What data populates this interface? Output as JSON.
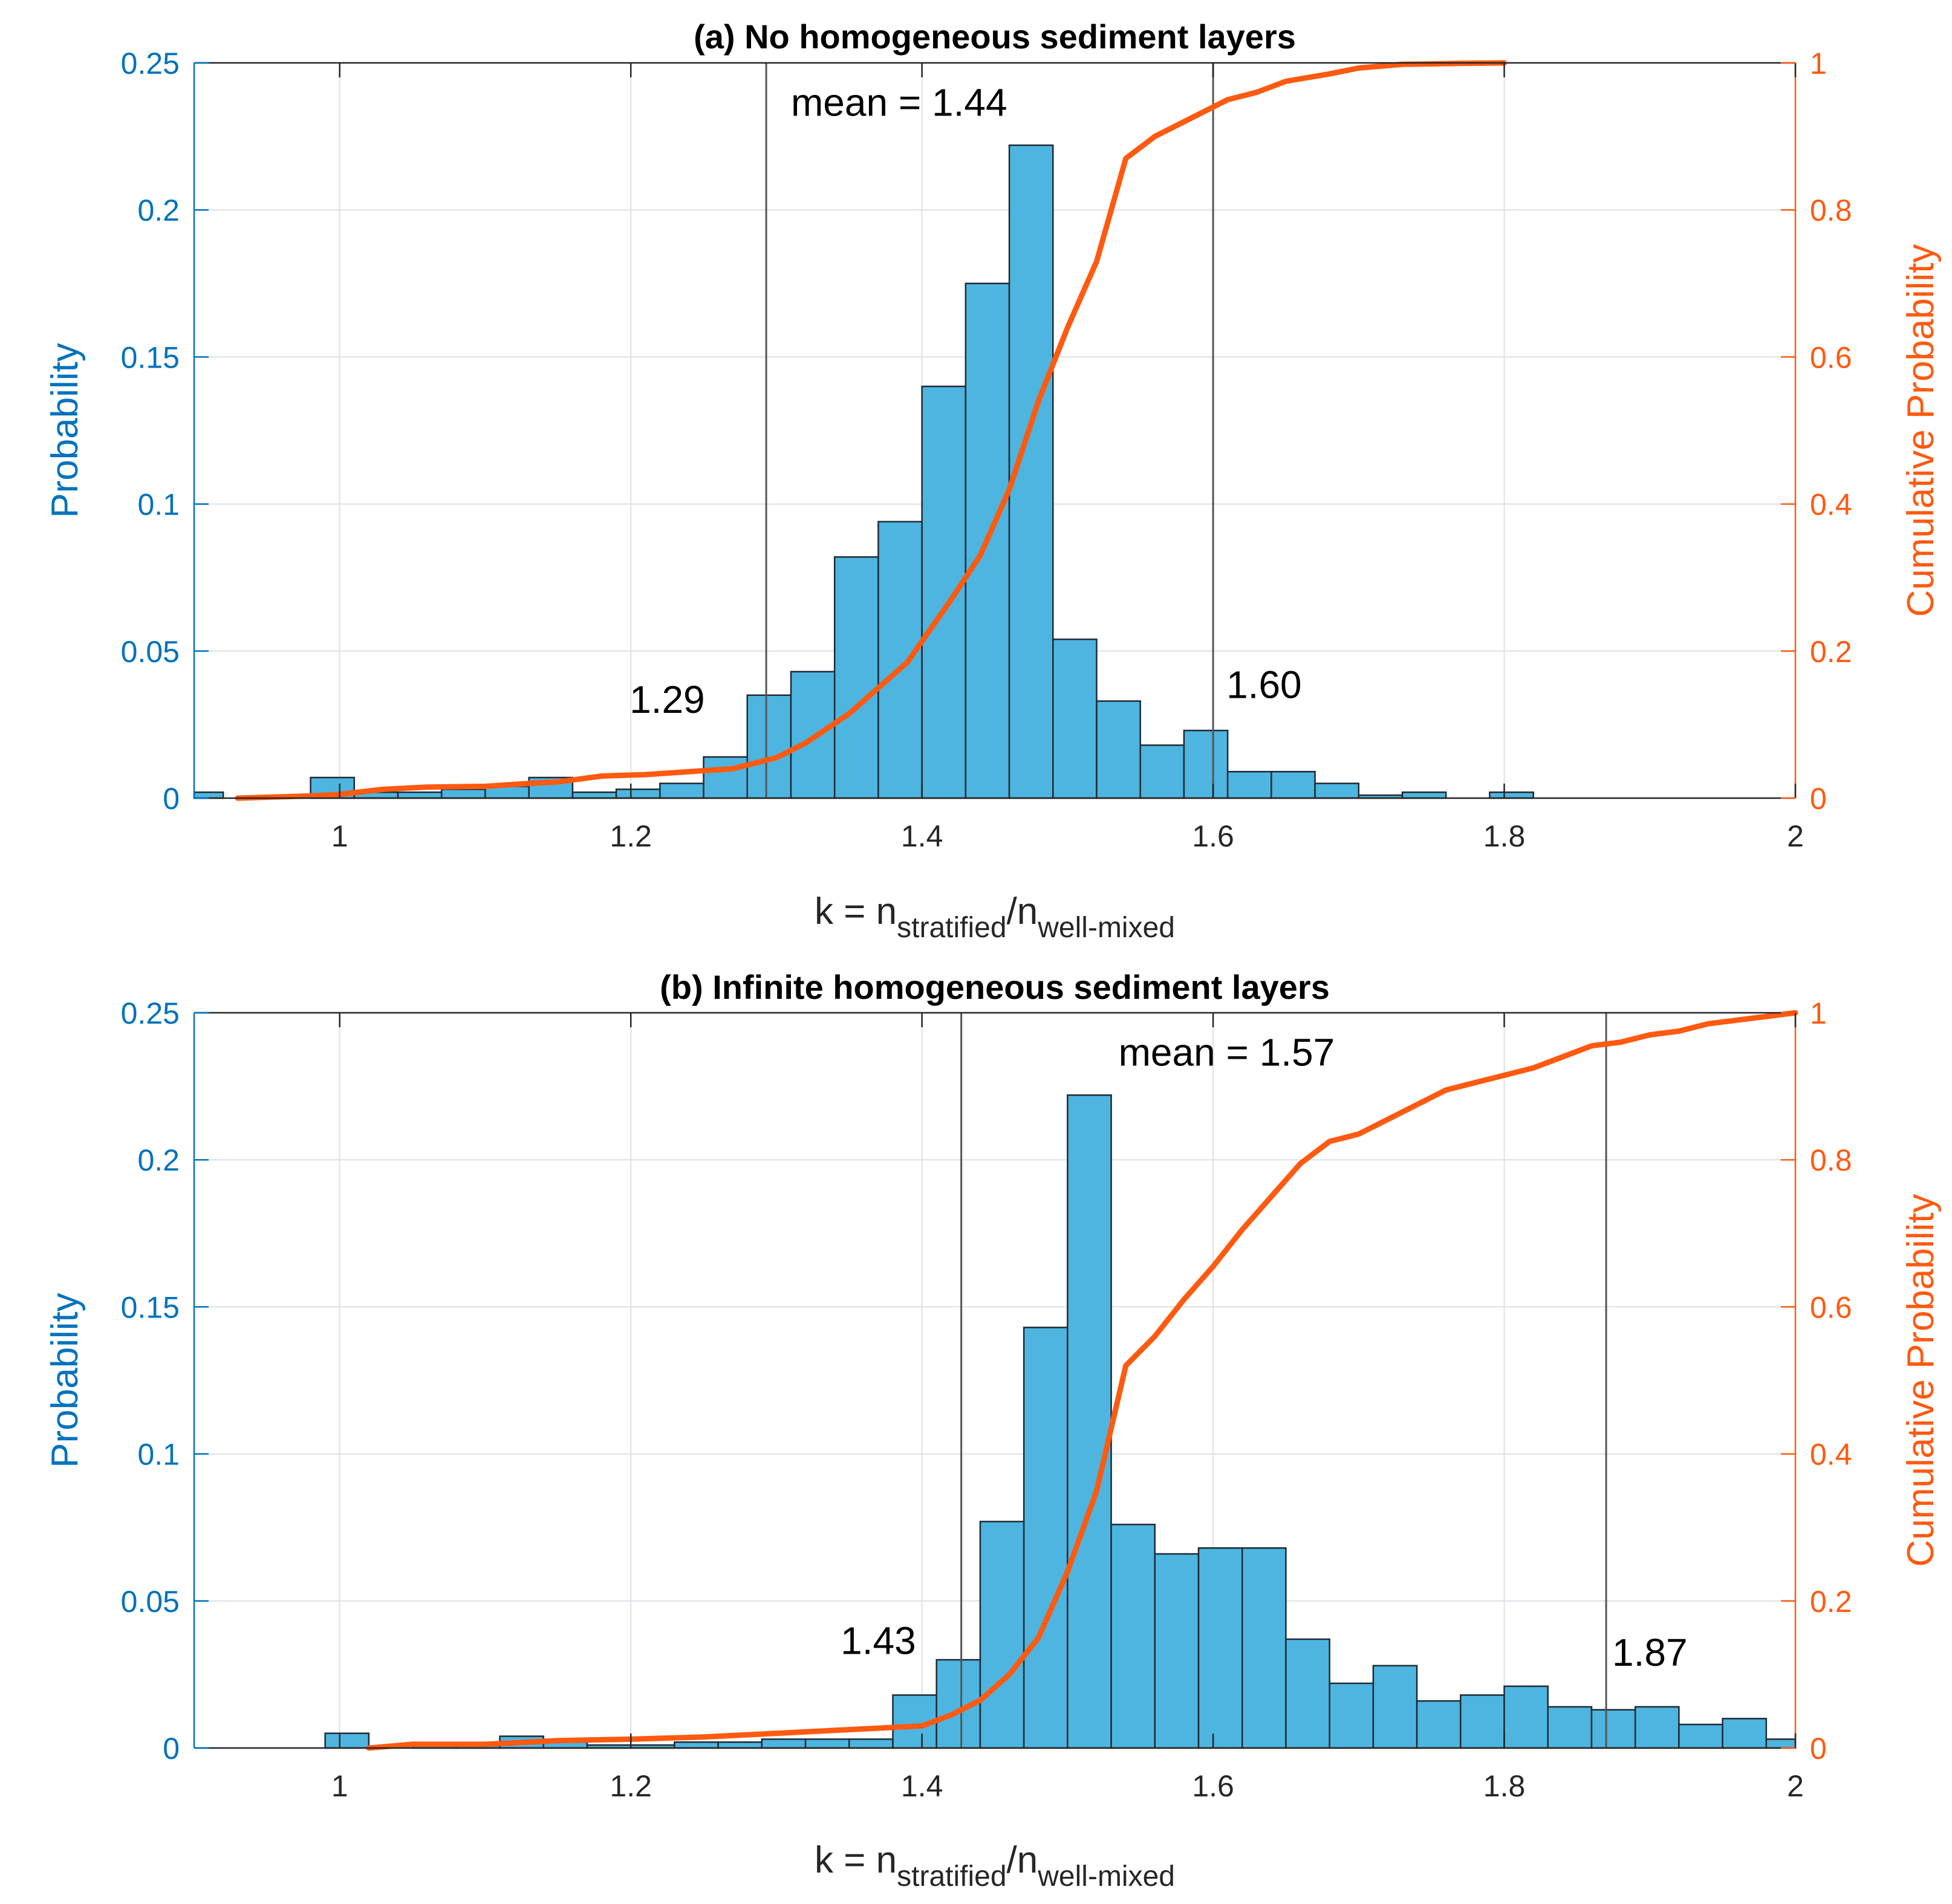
{
  "chart_data": [
    {
      "type": "bar",
      "title": "(a) No homogeneous sediment layers",
      "xlabel": {
        "main": "k = n",
        "sub1": "stratified",
        "slash": "/n",
        "sub2": "well-mixed"
      },
      "ylabel": "Probability",
      "y2label": "Cumulative Probability",
      "xlim": [
        0.9,
        2.0
      ],
      "ylim": [
        0,
        0.25
      ],
      "y2lim": [
        0,
        1
      ],
      "grid": true,
      "xticks": [
        "1",
        "1.2",
        "1.4",
        "1.6",
        "1.8",
        "2"
      ],
      "yticks": [
        "0",
        "0.05",
        "0.1",
        "0.15",
        "0.2",
        "0.25"
      ],
      "y2ticks": [
        "0",
        "0.2",
        "0.4",
        "0.6",
        "0.8",
        "1"
      ],
      "bin_width": 0.03,
      "histogram": [
        {
          "x0": 0.89,
          "value": 0.002
        },
        {
          "x0": 0.92,
          "value": 0.0
        },
        {
          "x0": 0.95,
          "value": 0.0
        },
        {
          "x0": 0.98,
          "value": 0.007
        },
        {
          "x0": 1.01,
          "value": 0.002
        },
        {
          "x0": 1.04,
          "value": 0.002
        },
        {
          "x0": 1.07,
          "value": 0.003
        },
        {
          "x0": 1.1,
          "value": 0.004
        },
        {
          "x0": 1.13,
          "value": 0.007
        },
        {
          "x0": 1.16,
          "value": 0.002
        },
        {
          "x0": 1.19,
          "value": 0.003
        },
        {
          "x0": 1.22,
          "value": 0.005
        },
        {
          "x0": 1.25,
          "value": 0.014
        },
        {
          "x0": 1.28,
          "value": 0.035
        },
        {
          "x0": 1.31,
          "value": 0.043
        },
        {
          "x0": 1.34,
          "value": 0.082
        },
        {
          "x0": 1.37,
          "value": 0.094
        },
        {
          "x0": 1.4,
          "value": 0.14
        },
        {
          "x0": 1.43,
          "value": 0.175
        },
        {
          "x0": 1.46,
          "value": 0.222
        },
        {
          "x0": 1.49,
          "value": 0.054
        },
        {
          "x0": 1.52,
          "value": 0.033
        },
        {
          "x0": 1.55,
          "value": 0.018
        },
        {
          "x0": 1.58,
          "value": 0.023
        },
        {
          "x0": 1.61,
          "value": 0.009
        },
        {
          "x0": 1.64,
          "value": 0.009
        },
        {
          "x0": 1.67,
          "value": 0.005
        },
        {
          "x0": 1.7,
          "value": 0.001
        },
        {
          "x0": 1.73,
          "value": 0.002
        },
        {
          "x0": 1.76,
          "value": 0.0
        },
        {
          "x0": 1.79,
          "value": 0.002
        }
      ],
      "cumulative": {
        "x": [
          0.93,
          0.98,
          1.0,
          1.03,
          1.06,
          1.1,
          1.13,
          1.15,
          1.18,
          1.21,
          1.24,
          1.27,
          1.3,
          1.32,
          1.35,
          1.37,
          1.39,
          1.42,
          1.44,
          1.46,
          1.48,
          1.5,
          1.52,
          1.54,
          1.56,
          1.58,
          1.61,
          1.63,
          1.65,
          1.68,
          1.7,
          1.73,
          1.76,
          1.8
        ],
        "y": [
          0.0,
          0.003,
          0.005,
          0.012,
          0.015,
          0.016,
          0.02,
          0.022,
          0.03,
          0.032,
          0.036,
          0.04,
          0.055,
          0.075,
          0.115,
          0.15,
          0.185,
          0.27,
          0.33,
          0.42,
          0.54,
          0.64,
          0.73,
          0.87,
          0.9,
          0.92,
          0.95,
          0.96,
          0.975,
          0.985,
          0.993,
          0.998,
          0.999,
          1.0
        ]
      },
      "vlines": [
        1.293,
        1.6
      ],
      "annotations": {
        "mean": "mean = 1.44",
        "lower": "1.29",
        "upper": "1.60"
      }
    },
    {
      "type": "bar",
      "title": "(b) Infinite homogeneous sediment layers",
      "xlabel": {
        "main": "k = n",
        "sub1": "stratified",
        "slash": "/n",
        "sub2": "well-mixed"
      },
      "ylabel": "Probability",
      "y2label": "Cumulative Probability",
      "xlim": [
        0.9,
        2.0
      ],
      "ylim": [
        0,
        0.25
      ],
      "y2lim": [
        0,
        1
      ],
      "grid": true,
      "xticks": [
        "1",
        "1.2",
        "1.4",
        "1.6",
        "1.8",
        "2"
      ],
      "yticks": [
        "0",
        "0.05",
        "0.1",
        "0.15",
        "0.2",
        "0.25"
      ],
      "y2ticks": [
        "0",
        "0.2",
        "0.4",
        "0.6",
        "0.8",
        "1"
      ],
      "bin_width": 0.03,
      "histogram": [
        {
          "x0": 0.99,
          "value": 0.005
        },
        {
          "x0": 1.02,
          "value": 0.0
        },
        {
          "x0": 1.05,
          "value": 0.001
        },
        {
          "x0": 1.08,
          "value": 0.001
        },
        {
          "x0": 1.11,
          "value": 0.004
        },
        {
          "x0": 1.14,
          "value": 0.002
        },
        {
          "x0": 1.17,
          "value": 0.001
        },
        {
          "x0": 1.2,
          "value": 0.001
        },
        {
          "x0": 1.23,
          "value": 0.002
        },
        {
          "x0": 1.26,
          "value": 0.002
        },
        {
          "x0": 1.29,
          "value": 0.003
        },
        {
          "x0": 1.32,
          "value": 0.003
        },
        {
          "x0": 1.35,
          "value": 0.003
        },
        {
          "x0": 1.38,
          "value": 0.018
        },
        {
          "x0": 1.41,
          "value": 0.03
        },
        {
          "x0": 1.44,
          "value": 0.077
        },
        {
          "x0": 1.47,
          "value": 0.143
        },
        {
          "x0": 1.5,
          "value": 0.222
        },
        {
          "x0": 1.53,
          "value": 0.076
        },
        {
          "x0": 1.56,
          "value": 0.066
        },
        {
          "x0": 1.59,
          "value": 0.068
        },
        {
          "x0": 1.62,
          "value": 0.068
        },
        {
          "x0": 1.65,
          "value": 0.037
        },
        {
          "x0": 1.68,
          "value": 0.022
        },
        {
          "x0": 1.71,
          "value": 0.028
        },
        {
          "x0": 1.74,
          "value": 0.016
        },
        {
          "x0": 1.77,
          "value": 0.018
        },
        {
          "x0": 1.8,
          "value": 0.021
        },
        {
          "x0": 1.83,
          "value": 0.014
        },
        {
          "x0": 1.86,
          "value": 0.013
        },
        {
          "x0": 1.89,
          "value": 0.014
        },
        {
          "x0": 1.92,
          "value": 0.008
        },
        {
          "x0": 1.95,
          "value": 0.01
        },
        {
          "x0": 1.98,
          "value": 0.003
        }
      ],
      "cumulative": {
        "x": [
          1.02,
          1.05,
          1.1,
          1.15,
          1.2,
          1.25,
          1.3,
          1.35,
          1.4,
          1.42,
          1.44,
          1.46,
          1.48,
          1.5,
          1.52,
          1.54,
          1.56,
          1.58,
          1.6,
          1.62,
          1.64,
          1.66,
          1.68,
          1.7,
          1.72,
          1.74,
          1.76,
          1.78,
          1.8,
          1.82,
          1.84,
          1.86,
          1.88,
          1.9,
          1.92,
          1.94,
          1.96,
          1.98,
          2.0
        ],
        "y": [
          0.0,
          0.005,
          0.005,
          0.01,
          0.012,
          0.015,
          0.02,
          0.025,
          0.03,
          0.045,
          0.065,
          0.1,
          0.15,
          0.24,
          0.35,
          0.52,
          0.56,
          0.61,
          0.655,
          0.705,
          0.75,
          0.795,
          0.825,
          0.835,
          0.855,
          0.875,
          0.895,
          0.905,
          0.915,
          0.925,
          0.94,
          0.955,
          0.96,
          0.97,
          0.975,
          0.985,
          0.99,
          0.995,
          1.0
        ]
      },
      "vlines": [
        1.427,
        1.87
      ],
      "annotations": {
        "mean": "mean = 1.57",
        "lower": "1.43",
        "upper": "1.87"
      }
    }
  ],
  "colors": {
    "bar_fill": "#4db5e0",
    "bar_edge": "#1f2a33",
    "cumulative_line": "#ff5a10",
    "left_axis": "#0072bd",
    "right_axis": "#ff5a10",
    "grid": "#dbe1e6",
    "vline": "#555555"
  }
}
